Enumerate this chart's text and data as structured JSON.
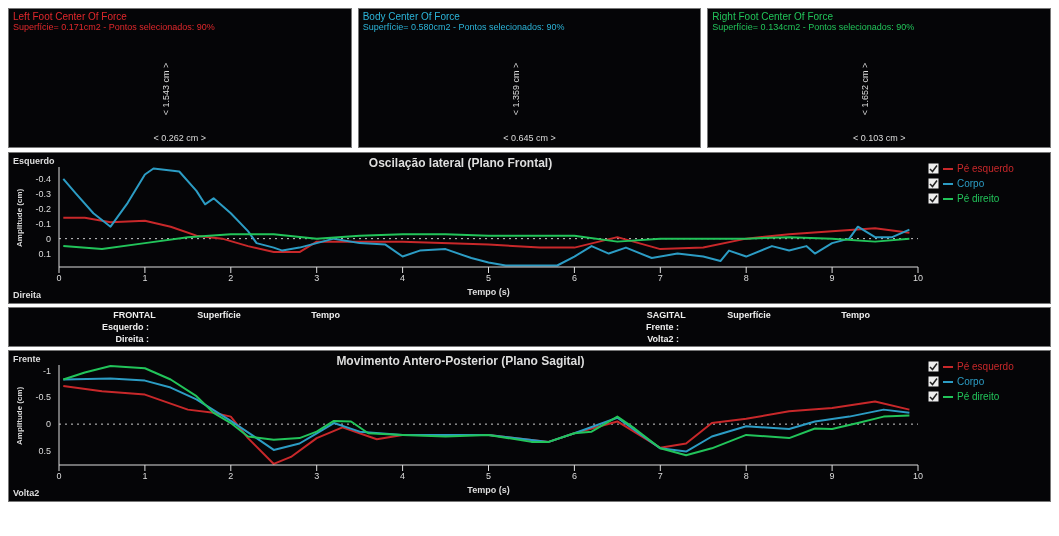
{
  "chart_data": [
    {
      "type": "other",
      "title": "Left Foot Center Of Force",
      "subtitle": "Superfície= 0.171cm2 - Pontos selecionados: 90%",
      "color": "#e0282c",
      "annotations": [
        "< 1.543 cm >",
        "< 0.262 cm >"
      ]
    },
    {
      "type": "other",
      "title": "Body Center Of Force",
      "subtitle": "Superfície= 0.580cm2 - Pontos selecionados: 90%",
      "color": "#2cb4d8",
      "annotations": [
        "< 1.359 cm >",
        "< 0.645 cm >"
      ]
    },
    {
      "type": "other",
      "title": "Right Foot Center Of Force",
      "subtitle": "Superfície= 0.134cm2 - Pontos selecionados: 90%",
      "color": "#22c45a",
      "annotations": [
        "< 1.652 cm >",
        "< 0.103 cm >"
      ]
    },
    {
      "type": "line",
      "title": "Oscilação lateral (Plano Frontal)",
      "xlabel": "Tempo (s)",
      "ylabel": "Amplitude (cm)",
      "annotations": [
        "Esquerdo",
        "Direita"
      ],
      "xlim": [
        0,
        10
      ],
      "xticks": [
        0,
        1,
        2,
        3,
        4,
        5,
        6,
        7,
        8,
        9,
        10
      ],
      "ylim": [
        0.19,
        -0.48
      ],
      "yticks": [
        -0.4,
        -0.3,
        -0.2,
        -0.1,
        0,
        0.1
      ],
      "legend": "top right",
      "ref_lines": [
        {
          "axis": "y",
          "value": 0,
          "color": "#cccccc",
          "line_style": "dotted"
        }
      ],
      "series": [
        {
          "name": "Pé esquerdo",
          "color": "#c8282a",
          "x": [
            0.05,
            0.3,
            0.6,
            1.0,
            1.3,
            1.6,
            1.9,
            2.2,
            2.5,
            2.8,
            3.0,
            4.0,
            5.0,
            5.6,
            6.0,
            6.5,
            7.0,
            7.5,
            8.0,
            8.5,
            9.0,
            9.5,
            9.9
          ],
          "values": [
            -0.14,
            -0.14,
            -0.11,
            -0.12,
            -0.08,
            -0.02,
            0,
            0.05,
            0.09,
            0.09,
            0.02,
            0.02,
            0.04,
            0.06,
            0.06,
            -0.01,
            0.07,
            0.06,
            0,
            -0.03,
            -0.05,
            -0.07,
            -0.04
          ]
        },
        {
          "name": "Corpo",
          "color": "#2c9cc4",
          "x": [
            0.05,
            0.2,
            0.4,
            0.6,
            0.8,
            1.0,
            1.1,
            1.4,
            1.6,
            1.7,
            1.8,
            2.0,
            2.2,
            2.3,
            2.5,
            2.6,
            2.8,
            3.0,
            3.2,
            3.5,
            3.8,
            4.0,
            4.2,
            4.5,
            4.8,
            5.0,
            5.2,
            5.5,
            5.8,
            6.0,
            6.2,
            6.4,
            6.6,
            6.9,
            7.2,
            7.5,
            7.7,
            7.8,
            8.0,
            8.3,
            8.5,
            8.7,
            8.8,
            9.0,
            9.2,
            9.3,
            9.5,
            9.7,
            9.9
          ],
          "values": [
            -0.4,
            -0.3,
            -0.17,
            -0.08,
            -0.24,
            -0.43,
            -0.47,
            -0.45,
            -0.32,
            -0.23,
            -0.27,
            -0.17,
            -0.05,
            0.03,
            0.06,
            0.08,
            0.06,
            0.03,
            0,
            0.03,
            0.04,
            0.12,
            0.08,
            0.07,
            0.13,
            0.16,
            0.18,
            0.18,
            0.18,
            0.12,
            0.05,
            0.1,
            0.06,
            0.13,
            0.1,
            0.12,
            0.15,
            0.08,
            0.12,
            0.05,
            0.08,
            0.05,
            0.1,
            0.03,
            0,
            -0.08,
            -0.01,
            -0.01,
            -0.06
          ]
        },
        {
          "name": "Pé direito",
          "color": "#22c45a",
          "x": [
            0.05,
            0.5,
            1.0,
            1.5,
            2.0,
            2.5,
            3.0,
            3.5,
            4.0,
            4.5,
            5.0,
            5.5,
            6.0,
            6.5,
            7.0,
            7.5,
            8.0,
            8.5,
            9.0,
            9.5,
            9.9
          ],
          "values": [
            0.05,
            0.07,
            0.03,
            -0.01,
            -0.03,
            -0.03,
            0,
            -0.02,
            -0.03,
            -0.03,
            -0.02,
            -0.02,
            -0.02,
            0.02,
            0,
            0,
            0,
            -0.01,
            0,
            0.02,
            0
          ]
        }
      ]
    },
    {
      "type": "other",
      "categories": [
        "FRONTAL",
        "Superfície",
        "Tempo",
        "SAGITAL",
        "Superfície",
        "Tempo"
      ],
      "y_categories": [
        "Esquerdo :",
        "Direita :",
        "Frente :",
        "Volta2 :"
      ]
    },
    {
      "type": "line",
      "title": "Movimento Antero-Posterior (Plano Sagital)",
      "xlabel": "Tempo (s)",
      "ylabel": "Amplitude (cm)",
      "annotations": [
        "Frente",
        "Volta2"
      ],
      "xlim": [
        0,
        10
      ],
      "xticks": [
        0,
        1,
        2,
        3,
        4,
        5,
        6,
        7,
        8,
        9,
        10
      ],
      "ylim": [
        0.76,
        -1.1
      ],
      "yticks": [
        -1,
        -0.5,
        0,
        0.5
      ],
      "legend": "top right",
      "ref_lines": [
        {
          "axis": "y",
          "value": 0,
          "color": "#cccccc",
          "line_style": "dotted"
        }
      ],
      "series": [
        {
          "name": "Pé esquerdo",
          "color": "#c8282a",
          "x": [
            0.05,
            0.5,
            1.0,
            1.5,
            1.8,
            2.0,
            2.2,
            2.5,
            2.7,
            3.0,
            3.3,
            3.7,
            4,
            5,
            5.7,
            6.0,
            6.5,
            7.0,
            7.3,
            7.6,
            8.0,
            8.5,
            9.0,
            9.5,
            9.9
          ],
          "values": [
            -0.71,
            -0.61,
            -0.55,
            -0.27,
            -0.21,
            -0.14,
            0.26,
            0.74,
            0.61,
            0.26,
            0.06,
            0.28,
            0.2,
            0.2,
            0.33,
            0.17,
            -0.05,
            0.44,
            0.36,
            -0.02,
            -0.1,
            -0.24,
            -0.3,
            -0.42,
            -0.27
          ]
        },
        {
          "name": "Corpo",
          "color": "#2c9cc4",
          "x": [
            0.05,
            0.6,
            1.0,
            1.3,
            1.6,
            2.0,
            2.3,
            2.5,
            2.8,
            3.0,
            3.2,
            3.5,
            4,
            5,
            5.7,
            6.0,
            6.5,
            7.0,
            7.3,
            7.6,
            8.0,
            8.5,
            8.8,
            9.2,
            9.6,
            9.9
          ],
          "values": [
            -0.83,
            -0.85,
            -0.81,
            -0.68,
            -0.46,
            -0.06,
            0.26,
            0.48,
            0.36,
            0.17,
            -0.02,
            0.14,
            0.2,
            0.2,
            0.33,
            0.17,
            -0.12,
            0.45,
            0.51,
            0.23,
            0.04,
            0.09,
            -0.05,
            -0.14,
            -0.27,
            -0.21
          ]
        },
        {
          "name": "Pé direito",
          "color": "#22c45a",
          "x": [
            0.05,
            0.3,
            0.6,
            1.0,
            1.3,
            1.6,
            1.8,
            2.0,
            2.2,
            2.5,
            2.8,
            3.0,
            3.2,
            3.4,
            3.6,
            4.0,
            4.5,
            5.0,
            5.5,
            5.7,
            6.0,
            6.2,
            6.5,
            6.7,
            7.0,
            7.3,
            7.6,
            8.0,
            8.5,
            8.8,
            9.0,
            9.3,
            9.6,
            9.9
          ],
          "values": [
            -0.83,
            -0.96,
            -1.08,
            -1.04,
            -0.83,
            -0.52,
            -0.21,
            -0.02,
            0.23,
            0.29,
            0.26,
            0.14,
            -0.06,
            -0.05,
            0.17,
            0.2,
            0.23,
            0.2,
            0.33,
            0.33,
            0.17,
            0.14,
            -0.14,
            0.08,
            0.45,
            0.58,
            0.45,
            0.2,
            0.26,
            0.08,
            0.09,
            -0.02,
            -0.14,
            -0.16
          ]
        }
      ]
    }
  ]
}
